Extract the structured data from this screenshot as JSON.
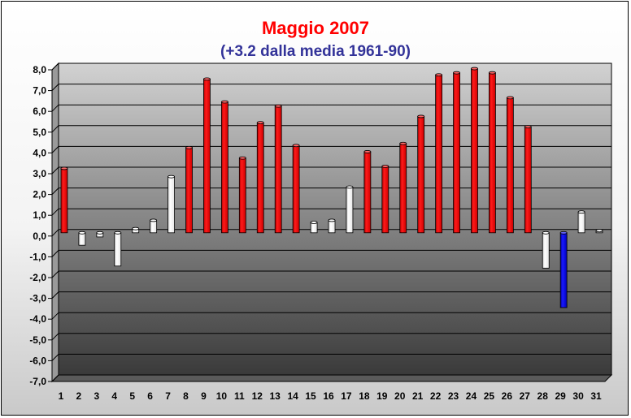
{
  "chart_data": {
    "type": "bar",
    "title": "Maggio 2007",
    "subtitle": "(+3.2 dalla media 1961-90)",
    "xlabel": "",
    "ylabel": "",
    "categories": [
      "1",
      "2",
      "3",
      "4",
      "5",
      "6",
      "7",
      "8",
      "9",
      "10",
      "11",
      "12",
      "13",
      "14",
      "15",
      "16",
      "17",
      "18",
      "19",
      "20",
      "21",
      "22",
      "23",
      "24",
      "25",
      "26",
      "27",
      "28",
      "29",
      "30",
      "31"
    ],
    "values": [
      3.1,
      -0.6,
      -0.2,
      -1.6,
      0.2,
      0.6,
      2.7,
      4.1,
      7.4,
      6.3,
      3.6,
      5.3,
      6.1,
      4.2,
      0.5,
      0.6,
      2.2,
      3.9,
      3.2,
      4.3,
      5.6,
      7.6,
      7.7,
      7.9,
      7.7,
      6.5,
      5.1,
      -1.7,
      -3.6,
      1.0,
      0.1
    ],
    "ylim": [
      -7,
      8
    ],
    "ytick_step": 1,
    "grid": true,
    "colors": {
      "warm_bar": "#ff0000",
      "near_zero_bar": "#ffffff",
      "cold_bar": "#0000cc",
      "plot_top": "#d2d2d2",
      "plot_bottom": "#3a3a3a"
    }
  }
}
